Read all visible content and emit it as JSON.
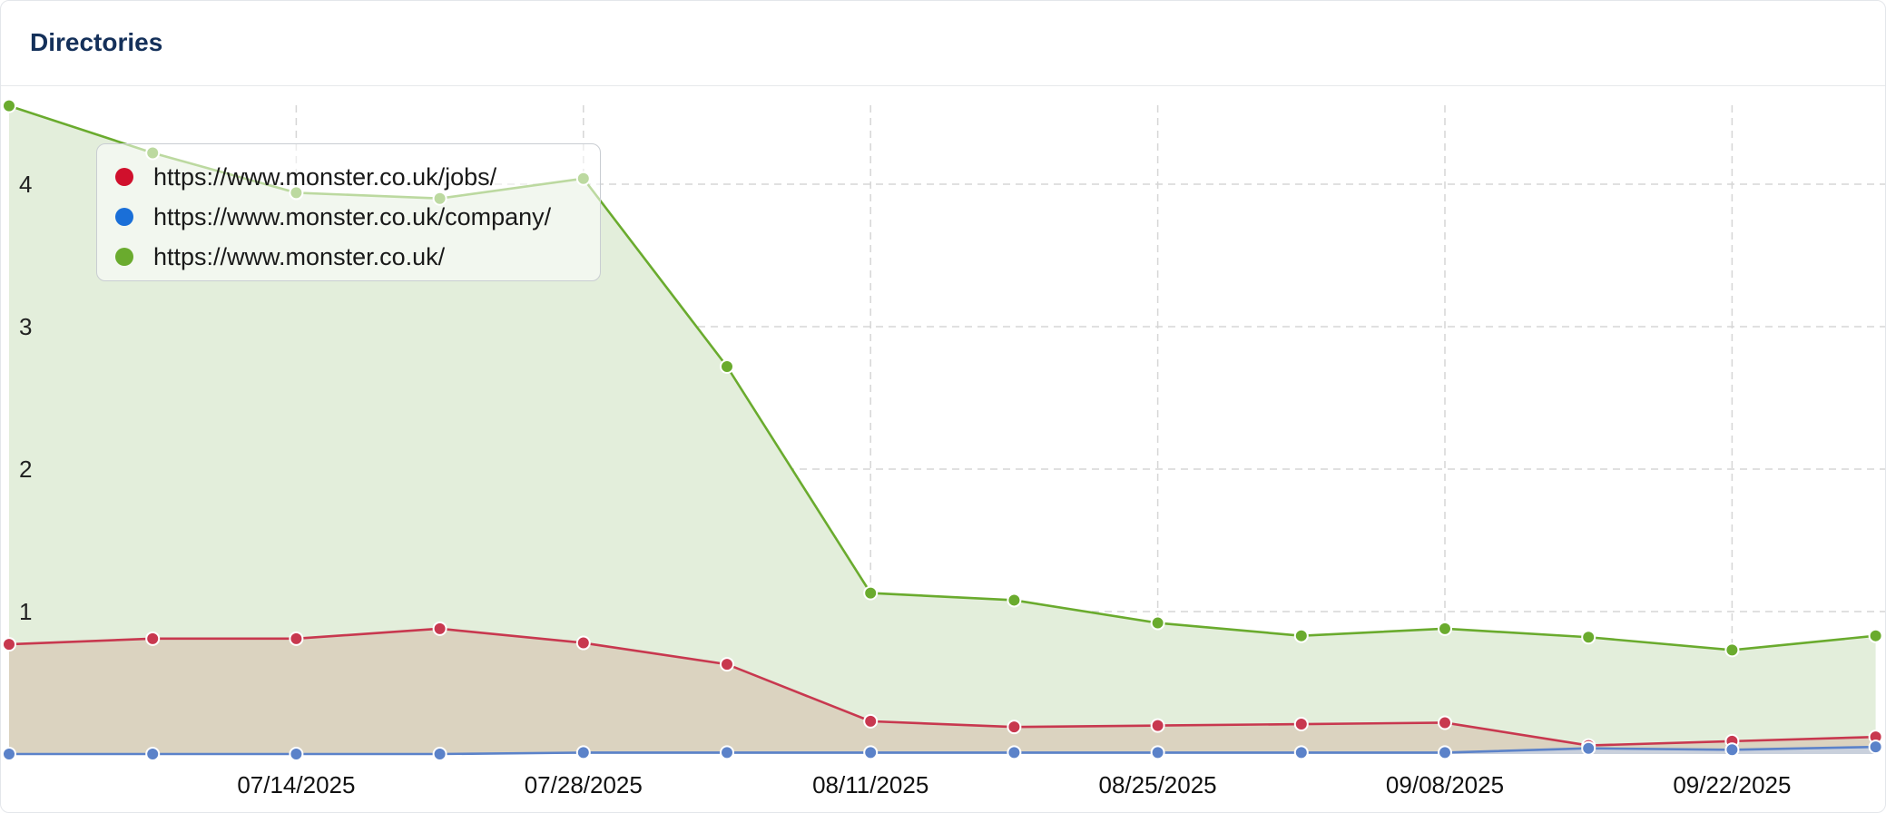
{
  "header": {
    "title": "Directories"
  },
  "chart_data": {
    "type": "area",
    "x": [
      "06/30/2025",
      "07/07/2025",
      "07/14/2025",
      "07/21/2025",
      "07/28/2025",
      "08/04/2025",
      "08/11/2025",
      "08/18/2025",
      "08/25/2025",
      "09/01/2025",
      "09/08/2025",
      "09/15/2025",
      "09/22/2025",
      "09/29/2025"
    ],
    "x_tick_labels": [
      "07/14/2025",
      "07/28/2025",
      "08/11/2025",
      "08/25/2025",
      "09/08/2025",
      "09/22/2025"
    ],
    "y_ticks": [
      1,
      2,
      3,
      4
    ],
    "ylim": [
      0,
      4.6
    ],
    "grid": true,
    "legend_position": "top-left",
    "series": [
      {
        "name": "https://www.monster.co.uk/",
        "color": "#6aab2e",
        "fill": "#e3eedb",
        "values": [
          4.55,
          4.22,
          3.94,
          3.9,
          4.04,
          2.72,
          1.13,
          1.08,
          0.92,
          0.83,
          0.88,
          0.82,
          0.73,
          0.83
        ]
      },
      {
        "name": "https://www.monster.co.uk/jobs/",
        "color": "#c8384f",
        "fill": "#dbd3c0",
        "legend_color": "#d0102c",
        "values": [
          0.77,
          0.81,
          0.81,
          0.88,
          0.78,
          0.63,
          0.23,
          0.19,
          0.2,
          0.21,
          0.22,
          0.06,
          0.09,
          0.12
        ]
      },
      {
        "name": "https://www.monster.co.uk/company/",
        "color": "#5b82c9",
        "fill": "#c9d0dc",
        "legend_color": "#1a6fd8",
        "values": [
          0.0,
          0.0,
          0.0,
          0.0,
          0.01,
          0.01,
          0.01,
          0.01,
          0.01,
          0.01,
          0.01,
          0.04,
          0.03,
          0.05
        ]
      }
    ]
  },
  "legend": {
    "items": [
      {
        "label": "https://www.monster.co.uk/jobs/",
        "color": "#d0102c"
      },
      {
        "label": "https://www.monster.co.uk/company/",
        "color": "#1a6fd8"
      },
      {
        "label": "https://www.monster.co.uk/",
        "color": "#6aab2e"
      }
    ]
  }
}
